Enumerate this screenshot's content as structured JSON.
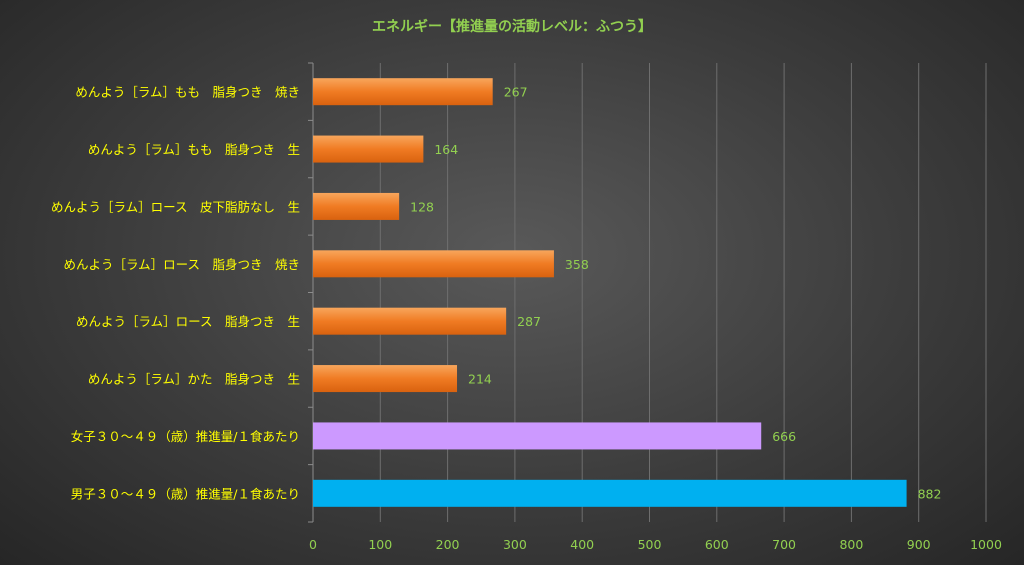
{
  "chart_data": {
    "type": "bar",
    "orientation": "horizontal",
    "title": "エネルギー【推進量の活動レベル：ふつう】",
    "categories": [
      "めんよう［ラム］もも　脂身つき　焼き",
      "めんよう［ラム］もも　脂身つき　生",
      "めんよう［ラム］ロース　皮下脂肪なし　生",
      "めんよう［ラム］ロース　脂身つき　焼き",
      "めんよう［ラム］ロース　脂身つき　生",
      "めんよう［ラム］かた　脂身つき　生",
      "女子３０～４９（歳）推進量/１食あたり",
      "男子３０～４９（歳）推進量/１食あたり"
    ],
    "values": [
      267,
      164,
      128,
      358,
      287,
      214,
      666,
      882
    ],
    "bar_colors": [
      "#f07b23",
      "#f07b23",
      "#f07b23",
      "#f07b23",
      "#f07b23",
      "#f07b23",
      "#cc99ff",
      "#00b0f0"
    ],
    "xlim": [
      0,
      1000
    ],
    "x_ticks": [
      0,
      100,
      200,
      300,
      400,
      500,
      600,
      700,
      800,
      900,
      1000
    ],
    "grid": true,
    "legend": "none",
    "colors": {
      "title": "#92d050",
      "category_label": "#ffff00",
      "tick_label": "#92d050",
      "data_label": "#92d050"
    }
  }
}
